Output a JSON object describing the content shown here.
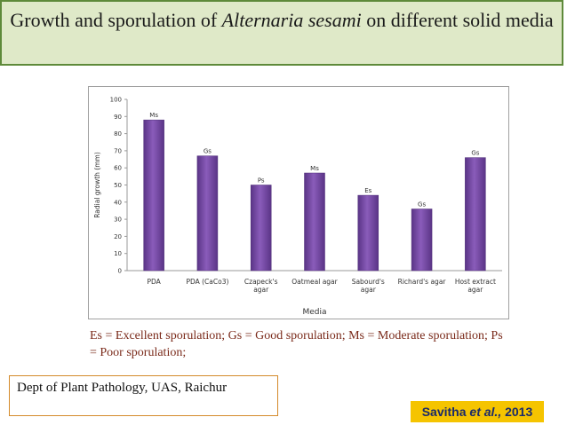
{
  "title": {
    "part1": "Growth and sporulation of ",
    "species": "Alternaria sesami",
    "part2": " on different solid media"
  },
  "legend_text": "Es = Excellent sporulation; Gs = Good sporulation; Ms = Moderate sporulation; Ps = Poor sporulation;",
  "department": "Dept of Plant Pathology, UAS, Raichur",
  "credit": {
    "author": "Savitha ",
    "etal": "et al.,",
    "year": " 2013"
  },
  "colors": {
    "bar": "#7b4fa8",
    "bar_dark": "#4e2d78",
    "title_bg": "#dfe9c8",
    "title_border": "#5e8a3a",
    "credit_bg": "#f5c400"
  },
  "chart_data": {
    "type": "bar",
    "categories": [
      "PDA",
      "PDA (CaCo3)",
      "Czapeck's agar",
      "Oatmeal agar",
      "Sabourd's agar",
      "Richard's agar",
      "Host extract agar"
    ],
    "category_lines": [
      [
        "PDA"
      ],
      [
        "PDA (CaCo3)"
      ],
      [
        "Czapeck's",
        "agar"
      ],
      [
        "Oatmeal agar"
      ],
      [
        "Sabourd's",
        "agar"
      ],
      [
        "Richard's agar"
      ],
      [
        "Host extract",
        "agar"
      ]
    ],
    "values": [
      88,
      67,
      50,
      57,
      44,
      36,
      66
    ],
    "data_labels": [
      "Ms",
      "Gs",
      "Ps",
      "Ms",
      "Es",
      "Gs",
      "Gs"
    ],
    "xlabel": "Media",
    "ylabel": "Radial growth (mm)",
    "ylim": [
      0,
      100
    ],
    "yticks": [
      0,
      10,
      20,
      30,
      40,
      50,
      60,
      70,
      80,
      90,
      100
    ],
    "grid": false,
    "legend": "none"
  }
}
